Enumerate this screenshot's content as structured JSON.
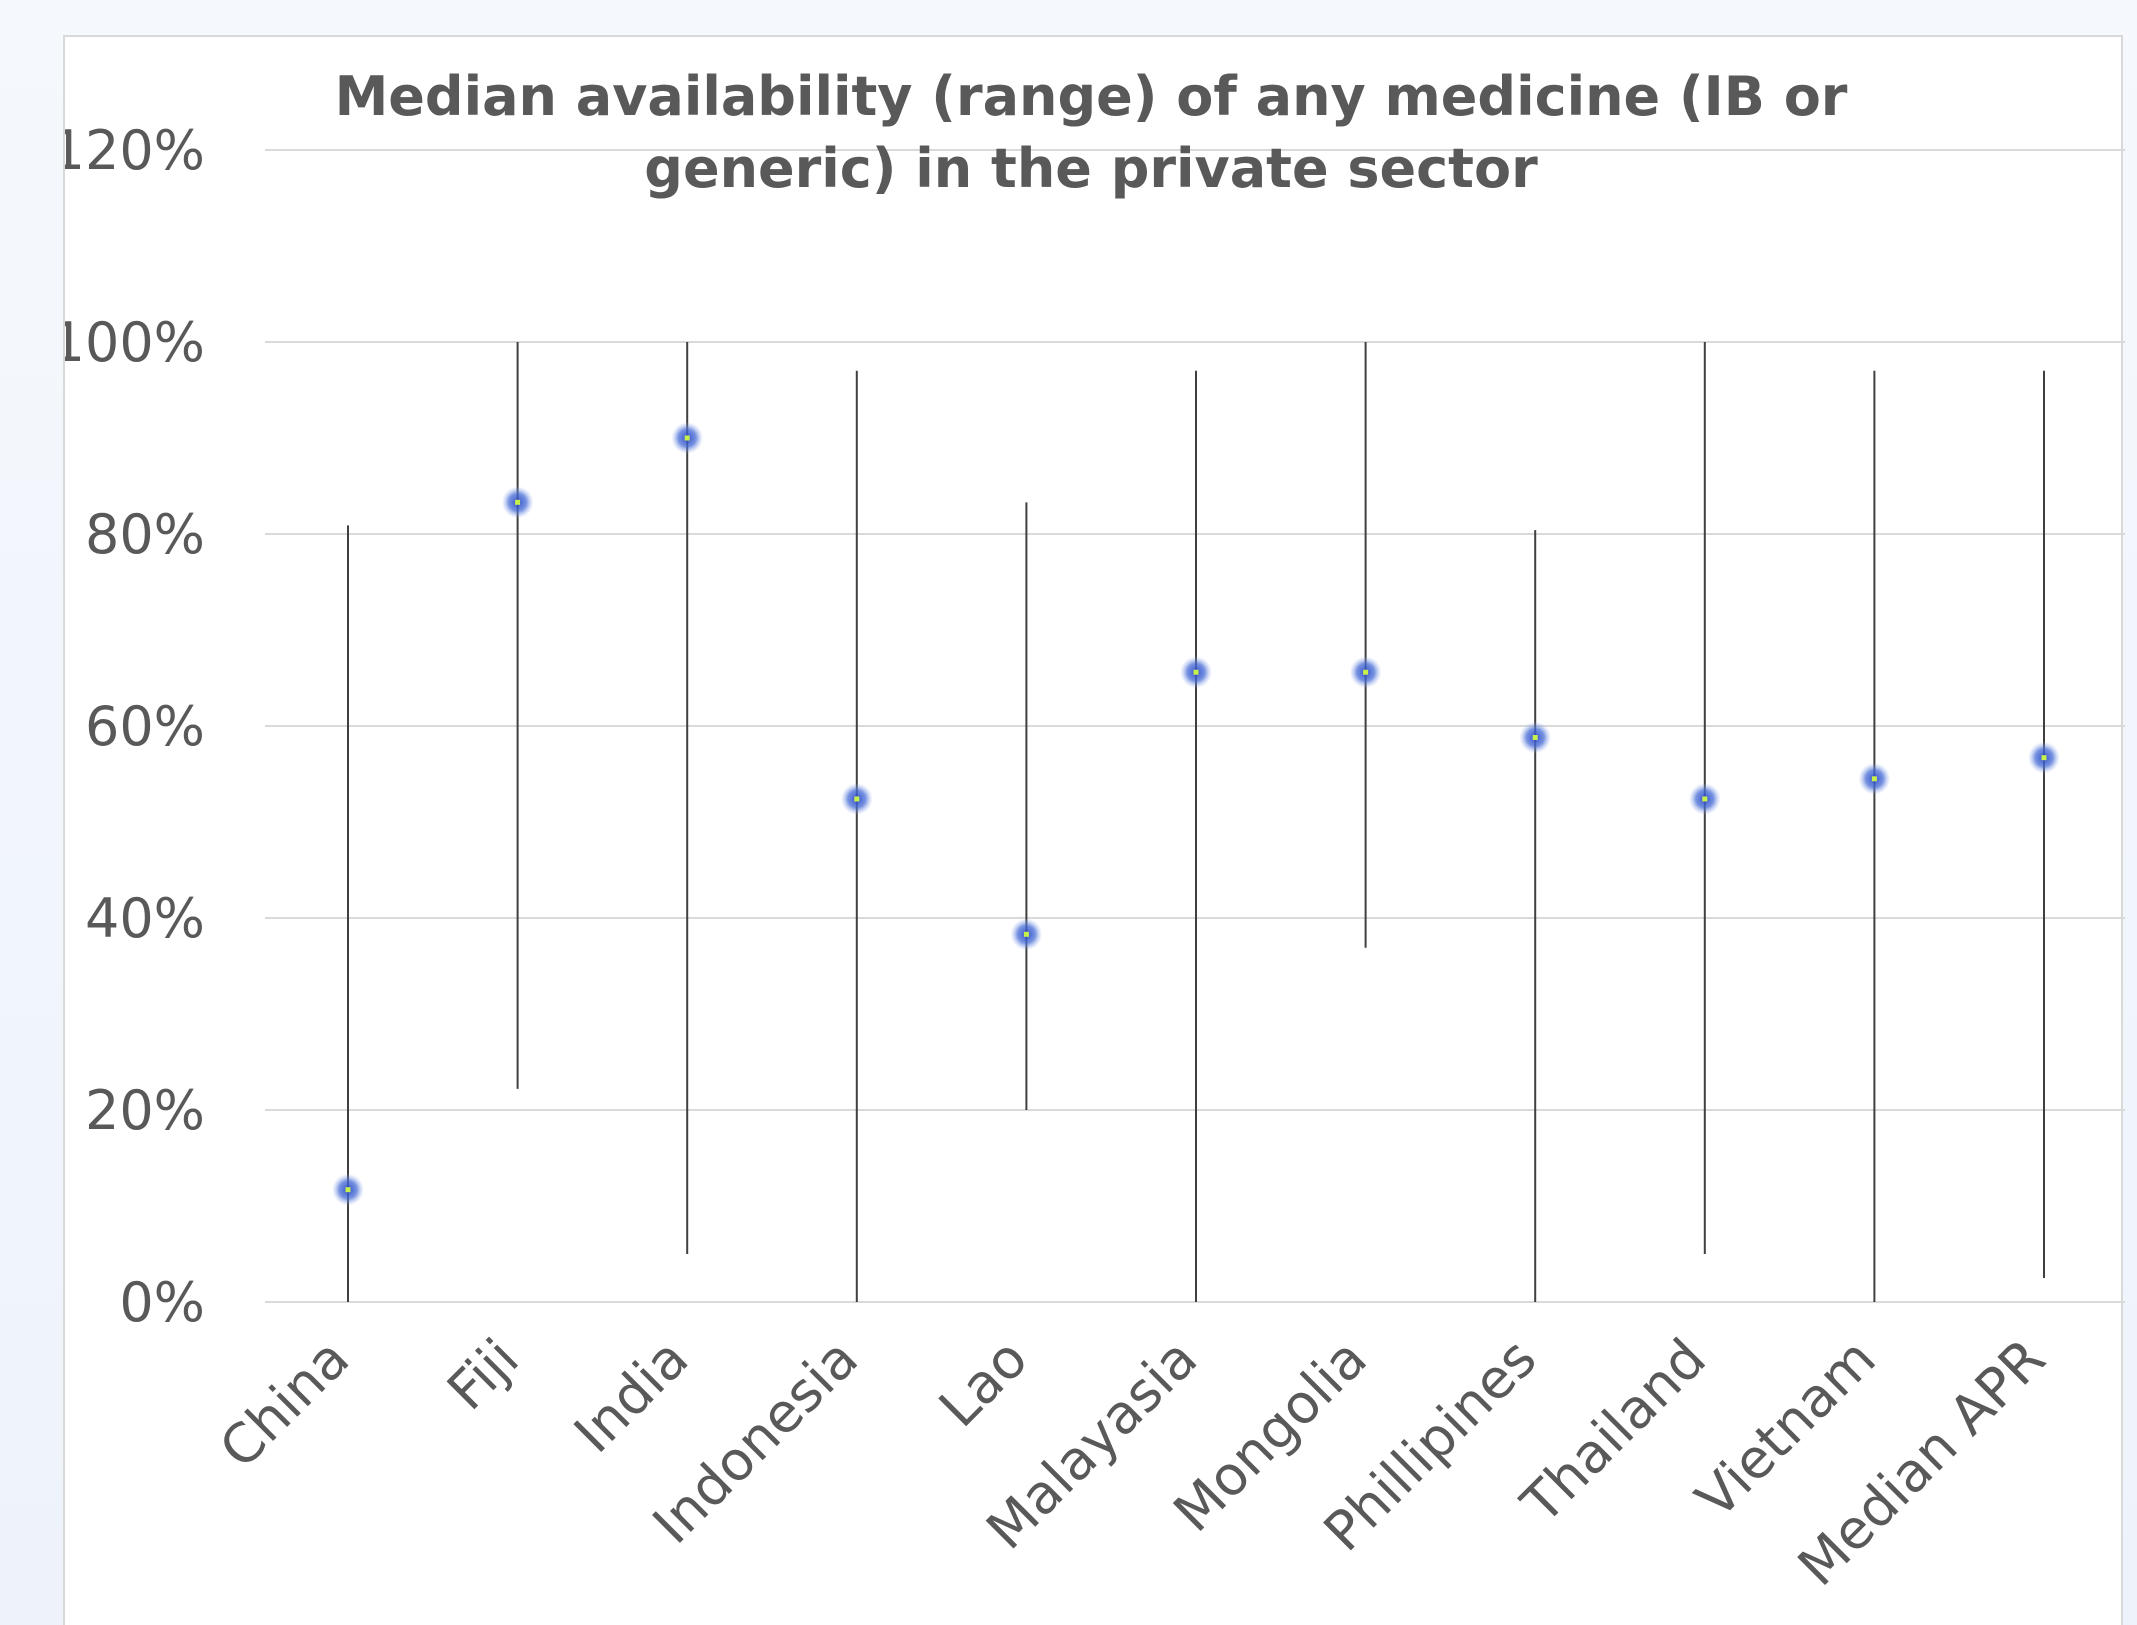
{
  "chart_data": {
    "type": "scatter",
    "title_lines": [
      "Median availability (range) of any medicine (IB or",
      "generic) in the private sector"
    ],
    "xlabel": "",
    "ylabel": "",
    "ylim": [
      0,
      120
    ],
    "yticks": [
      0,
      20,
      40,
      60,
      80,
      100,
      120
    ],
    "ytick_labels": [
      "0%",
      "20%",
      "40%",
      "60%",
      "80%",
      "100%",
      "120%"
    ],
    "grid": true,
    "legend": "none",
    "categories": [
      "China",
      "Fiji",
      "India",
      "Indonesia",
      "Lao",
      "Malayasia",
      "Mongolia",
      "Phillipines",
      "Thailand",
      "Vietnam",
      "Median APR"
    ],
    "series": [
      {
        "median": [
          11.7,
          83.3,
          90.0,
          52.4,
          38.3,
          65.6,
          65.6,
          58.8,
          52.4,
          54.5,
          56.7
        ],
        "min": [
          0,
          22.2,
          5.0,
          0,
          20.0,
          0,
          36.9,
          0,
          5.0,
          0,
          2.5
        ],
        "max": [
          80.9,
          100,
          100,
          97.0,
          83.3,
          97.0,
          100,
          80.4,
          100,
          97.0,
          97.0
        ]
      }
    ],
    "colors": {
      "marker": "#4a6fd6",
      "marker_center": "#c8f04a",
      "range_line": "#404040",
      "grid": "#d9d9d9",
      "text": "#595959"
    }
  }
}
